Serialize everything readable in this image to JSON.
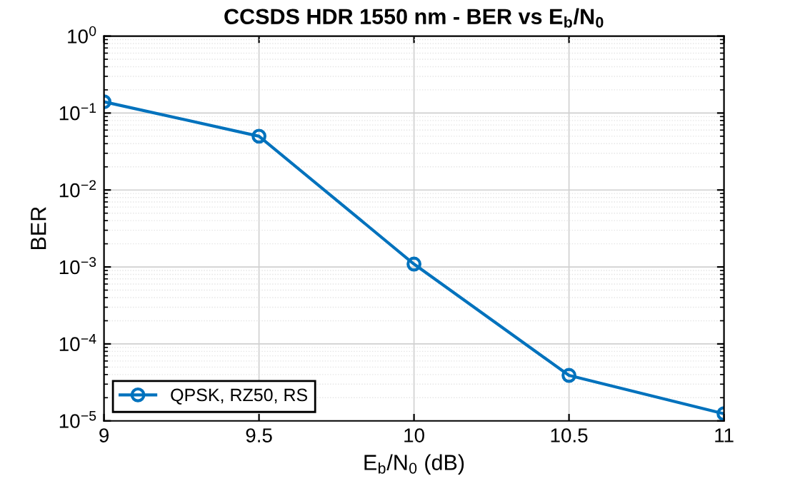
{
  "chart_data": {
    "type": "line",
    "title": "CCSDS HDR 1550 nm - BER vs E$_{b}$/N$_{0}$",
    "xlabel": "E$_{b}$/N$_{0}$ (dB)",
    "ylabel": "BER",
    "x": [
      9,
      9.5,
      10,
      10.5,
      11
    ],
    "series": [
      {
        "name": "QPSK, RZ50, RS",
        "color": "#0072bd",
        "values": [
          0.14,
          0.05,
          0.00109,
          3.9e-05,
          1.24e-05
        ]
      }
    ],
    "log": "y",
    "xlim": [
      9,
      11
    ],
    "xticks": [
      9,
      9.5,
      10,
      10.5,
      11
    ],
    "ylim": [
      1e-05,
      1
    ],
    "yticks": [
      {
        "value": 1e-05,
        "label": "10$^{−5}$"
      },
      {
        "value": 0.0001,
        "label": "10$^{−4}$"
      },
      {
        "value": 0.001,
        "label": "10$^{−3}$"
      },
      {
        "value": 0.01,
        "label": "10$^{−2}$"
      },
      {
        "value": 0.1,
        "label": "10$^{−1}$"
      },
      {
        "value": 1,
        "label": "10$^{0}$"
      }
    ],
    "grid": true,
    "legend": "bottom left",
    "marker": "circle",
    "line_style": "solid"
  }
}
